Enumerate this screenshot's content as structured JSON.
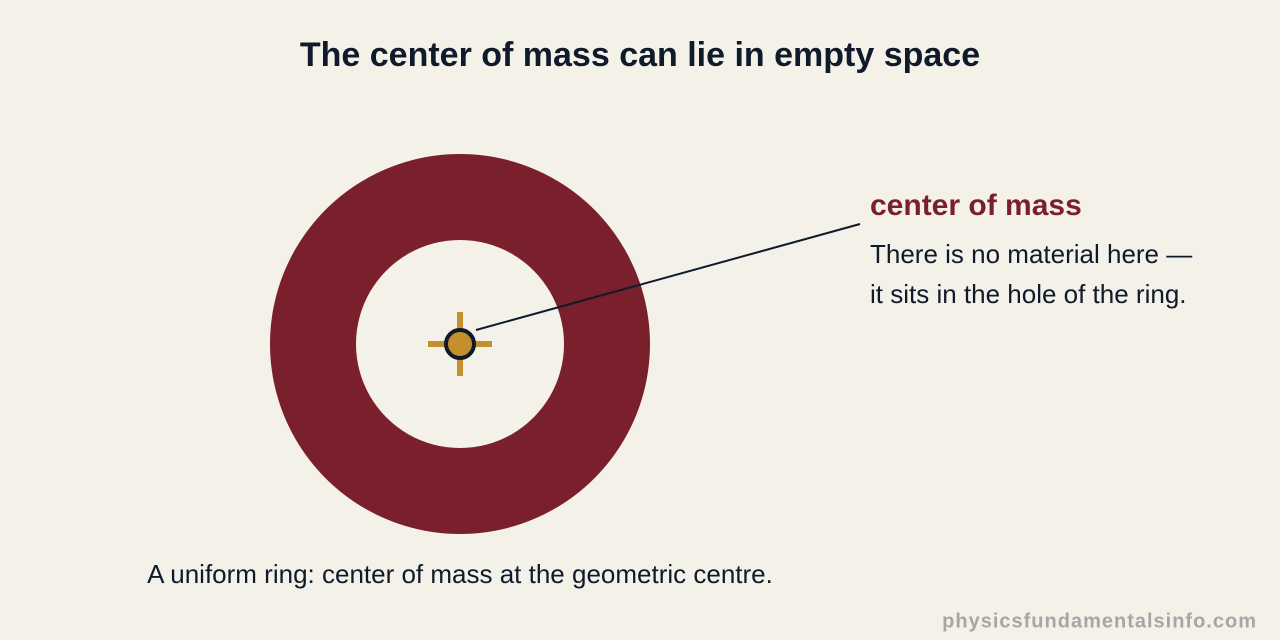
{
  "title": "The center of mass can lie in empty space",
  "callout": {
    "heading": "center of mass",
    "lines": [
      "There is no material here —",
      "it sits in the hole of the ring."
    ]
  },
  "caption": "A uniform ring: center of mass at the geometric centre.",
  "watermark": "physicsfundamentalsinfo.com"
}
